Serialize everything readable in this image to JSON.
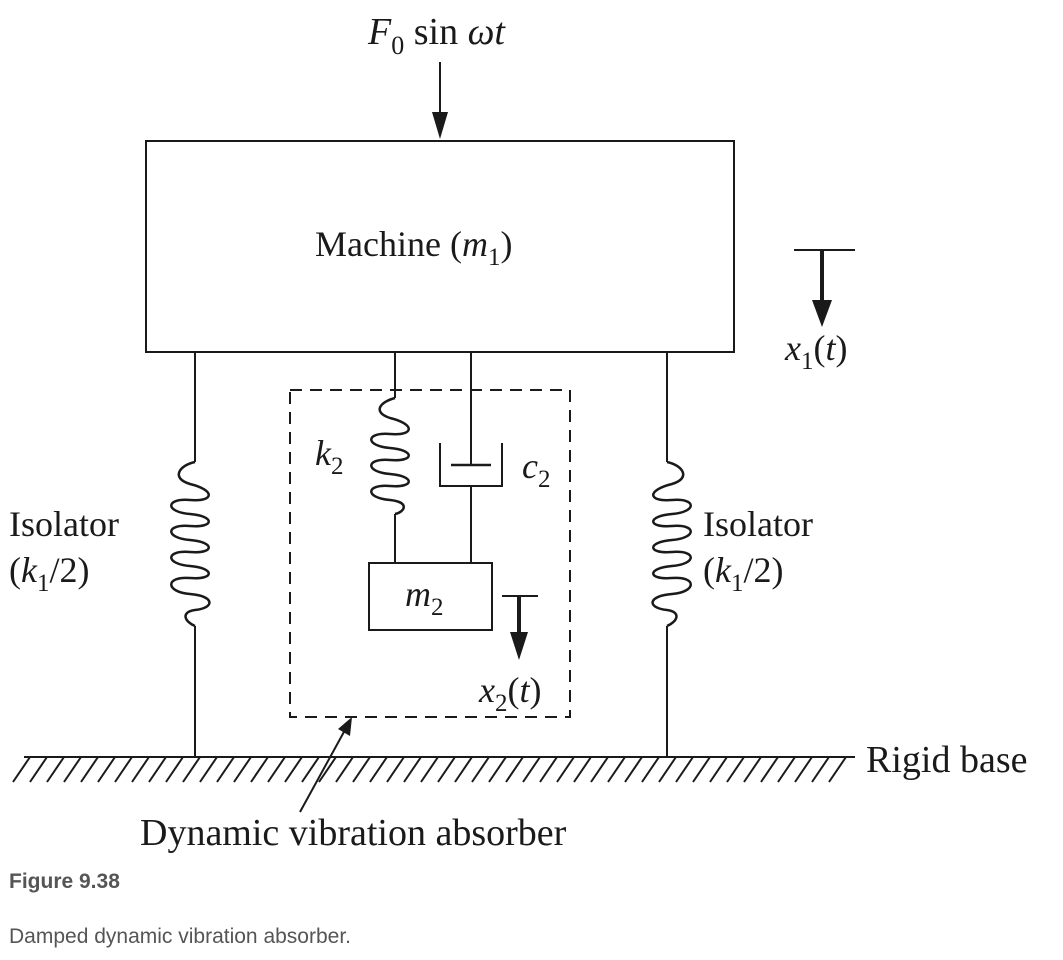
{
  "diagram": {
    "force": {
      "F": "F",
      "sub": "0",
      "rest": " sin ",
      "omega": "ωt"
    },
    "machine": {
      "prefix": "Machine (",
      "m": "m",
      "sub": "1",
      "suffix": ")"
    },
    "x1": {
      "x": "x",
      "sub": "1",
      "open": "(",
      "t": "t",
      "close": ")"
    },
    "k2": {
      "k": "k",
      "sub": "2"
    },
    "c2": {
      "c": "c",
      "sub": "2"
    },
    "m2": {
      "m": "m",
      "sub": "2"
    },
    "x2": {
      "x": "x",
      "sub": "2",
      "open": "(",
      "t": "t",
      "close": ")"
    },
    "isolator_left": {
      "word": "Isolator",
      "open": "(",
      "k": "k",
      "sub": "1",
      "tail": "/2)"
    },
    "isolator_right": {
      "word": "Isolator",
      "open": "(",
      "k": "k",
      "sub": "1",
      "tail": "/2)"
    },
    "rigid_base": "Rigid base",
    "absorber_label": "Dynamic vibration absorber"
  },
  "caption": {
    "figure_label": "Figure 9.38",
    "description": "Damped dynamic vibration absorber."
  }
}
